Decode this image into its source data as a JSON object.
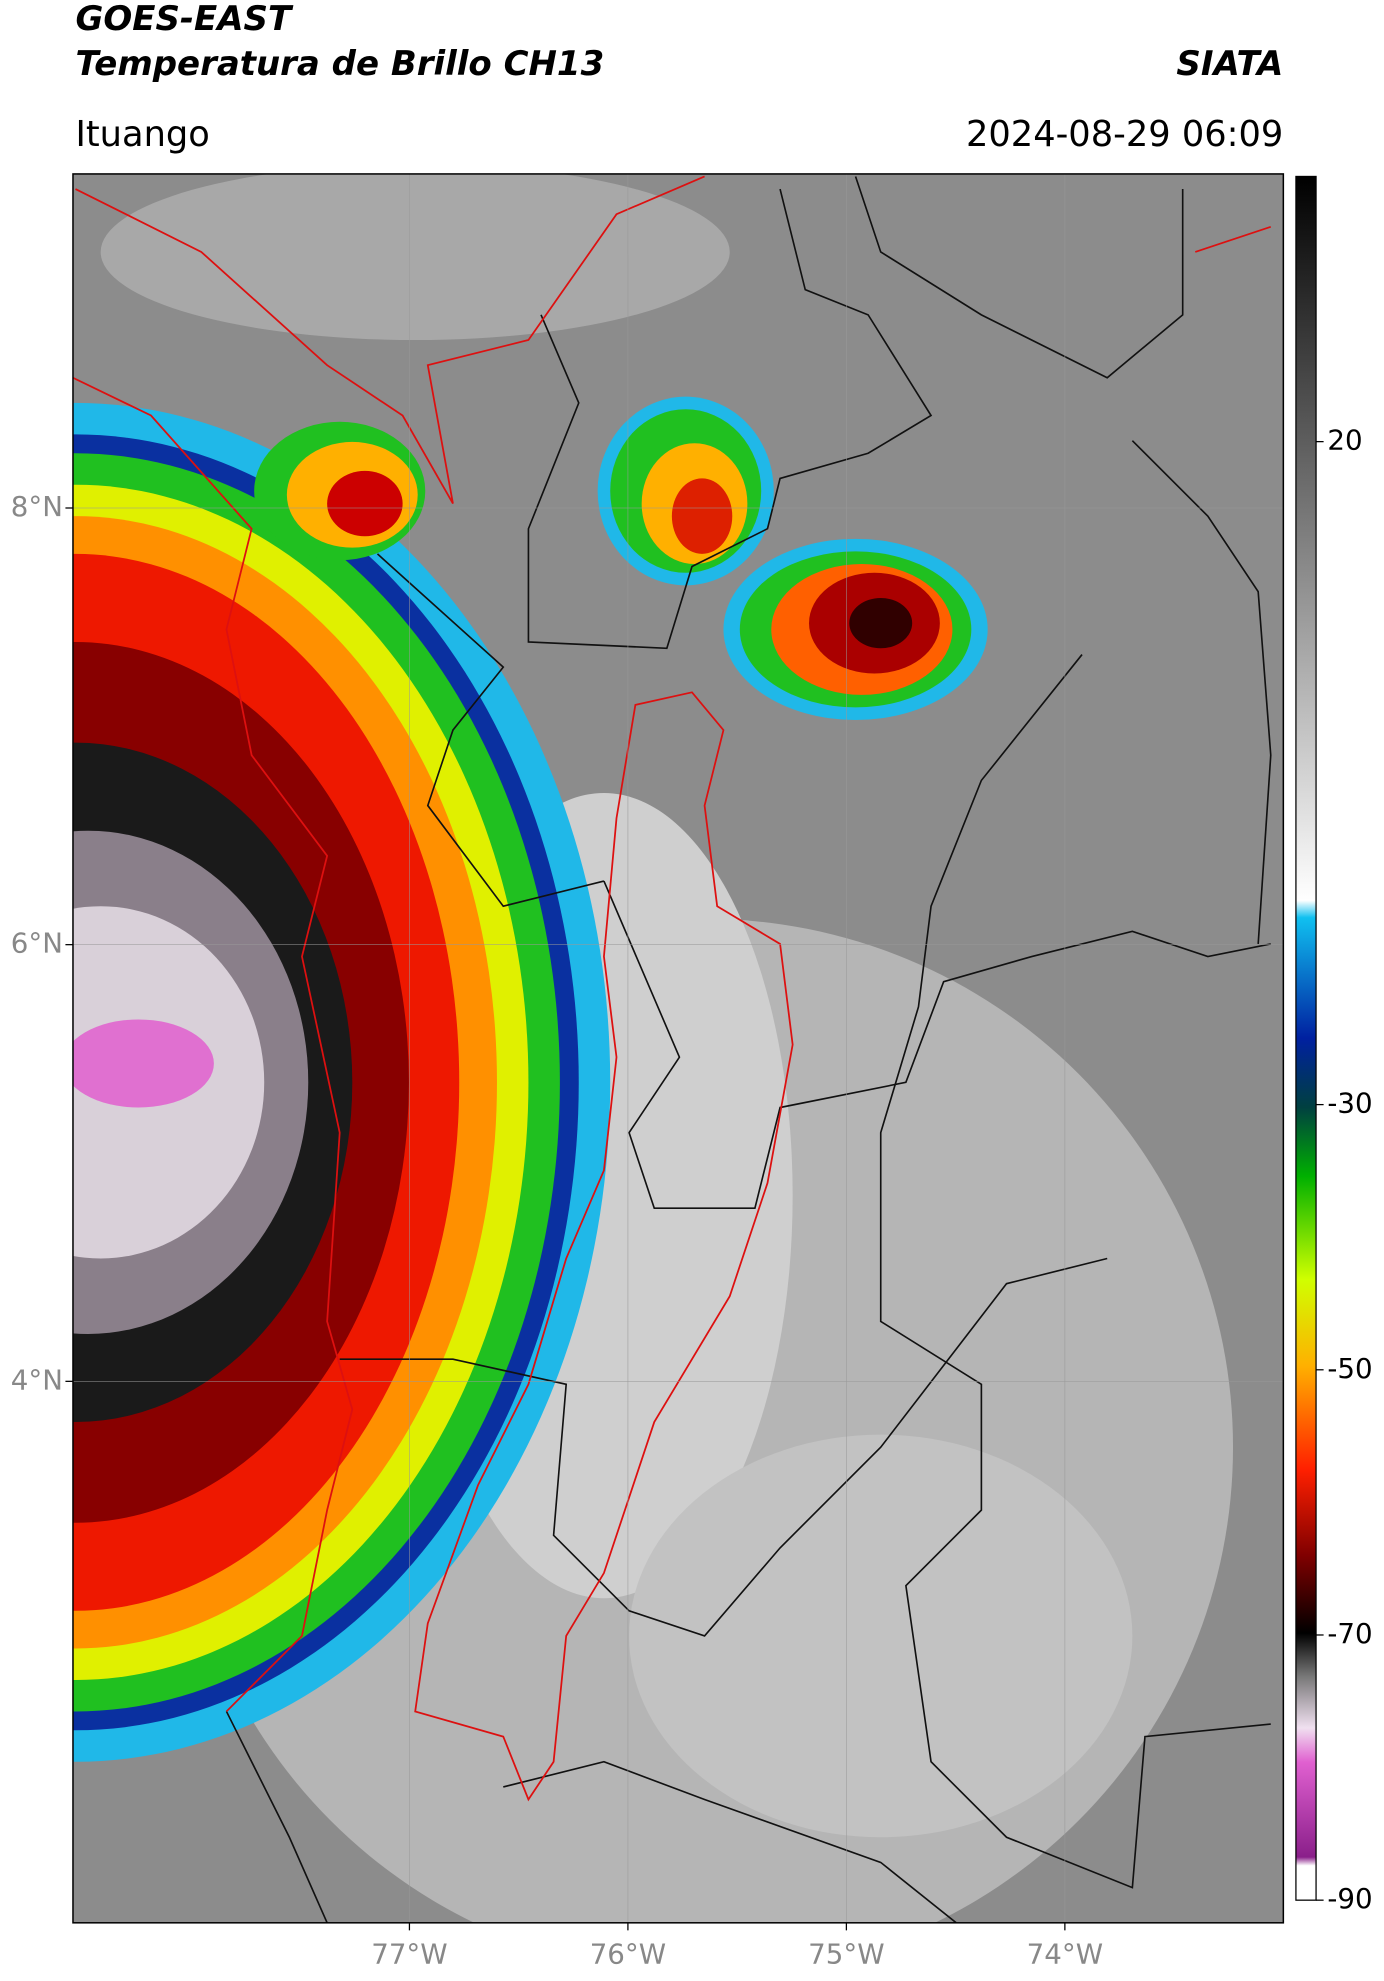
{
  "header": {
    "title": "GOES-EAST",
    "subtitle": "Temperatura de Brillo CH13",
    "brand": "SIATA",
    "region": "Ituango",
    "timestamp": "2024-08-29 06:09"
  },
  "map": {
    "lat_lim": [
      1.52,
      9.53
    ],
    "lon_lim": [
      -78.54,
      -73.0
    ],
    "lat_ticks": [
      {
        "value": 8,
        "label": "8°N"
      },
      {
        "value": 6,
        "label": "6°N"
      },
      {
        "value": 4,
        "label": "4°N"
      }
    ],
    "lon_ticks": [
      {
        "value": -77,
        "label": "77°W"
      },
      {
        "value": -76,
        "label": "76°W"
      },
      {
        "value": -75,
        "label": "75°W"
      },
      {
        "value": -74,
        "label": "74°W"
      }
    ]
  },
  "colorbar": {
    "lim": [
      -90,
      40
    ],
    "ticks": [
      20,
      -30,
      -50,
      -70,
      -90
    ]
  }
}
